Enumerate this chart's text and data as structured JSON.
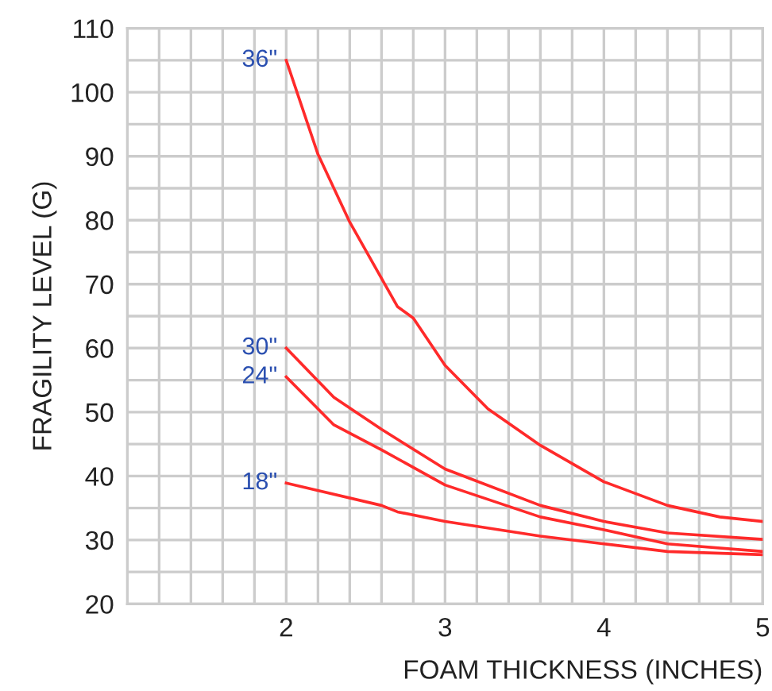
{
  "chart_data": {
    "type": "line",
    "xlabel": "FOAM THICKNESS (INCHES)",
    "ylabel": "FRAGILITY LEVEL (G)",
    "series": [
      {
        "name": "36\"",
        "color": "#ff2a2a",
        "x": [
          2.0,
          2.2,
          2.4,
          2.7,
          2.8,
          3.0,
          3.27,
          3.6,
          4.0,
          4.4,
          4.73,
          5.0
        ],
        "values": [
          105,
          90.3,
          79.7,
          66.5,
          64.7,
          57.3,
          50.5,
          44.8,
          39.1,
          35.4,
          33.6,
          32.9
        ]
      },
      {
        "name": "30\"",
        "color": "#ff2a2a",
        "x": [
          2.0,
          2.3,
          2.6,
          3.0,
          3.6,
          4.0,
          4.4,
          5.0
        ],
        "values": [
          60,
          52.3,
          47.3,
          41.1,
          35.4,
          32.9,
          31.1,
          30.1
        ]
      },
      {
        "name": "24\"",
        "color": "#ff2a2a",
        "x": [
          2.0,
          2.3,
          2.6,
          3.0,
          3.6,
          4.0,
          4.4,
          5.0
        ],
        "values": [
          55.5,
          48,
          44.1,
          38.6,
          33.6,
          31.6,
          29.4,
          28.2
        ]
      },
      {
        "name": "18\"",
        "color": "#ff2a2a",
        "x": [
          2.0,
          2.6,
          2.7,
          3.0,
          3.6,
          4.0,
          4.4,
          5.0
        ],
        "values": [
          38.9,
          35.4,
          34.4,
          32.9,
          30.6,
          29.4,
          28.2,
          27.7
        ]
      }
    ],
    "xlim": [
      1,
      5
    ],
    "ylim": [
      20,
      110
    ],
    "xticks": [
      {
        "value": 1.2,
        "label": null
      },
      {
        "value": 1.4,
        "label": null
      },
      {
        "value": 1.6,
        "label": null
      },
      {
        "value": 1.8,
        "label": null
      },
      2,
      {
        "value": 2.2,
        "label": null
      },
      {
        "value": 2.4,
        "label": null
      },
      {
        "value": 2.6,
        "label": null
      },
      {
        "value": 2.8,
        "label": null
      },
      3,
      {
        "value": 3.2,
        "label": null
      },
      {
        "value": 3.4,
        "label": null
      },
      {
        "value": 3.6,
        "label": null
      },
      {
        "value": 3.8,
        "label": null
      },
      4,
      {
        "value": 4.2,
        "label": null
      },
      {
        "value": 4.4,
        "label": null
      },
      {
        "value": 4.6,
        "label": null
      },
      {
        "value": 4.8,
        "label": null
      },
      5
    ],
    "yticks": [
      20,
      {
        "value": 25,
        "label": null
      },
      30,
      {
        "value": 35,
        "label": null
      },
      40,
      {
        "value": 45,
        "label": null
      },
      50,
      {
        "value": 55,
        "label": null
      },
      60,
      {
        "value": 65,
        "label": null
      },
      70,
      {
        "value": 75,
        "label": null
      },
      80,
      {
        "value": 85,
        "label": null
      },
      90,
      {
        "value": 95,
        "label": null
      },
      100,
      {
        "value": 105,
        "label": null
      },
      110
    ],
    "grid": true,
    "legend": false,
    "marker": "none",
    "line_style": "solid"
  }
}
